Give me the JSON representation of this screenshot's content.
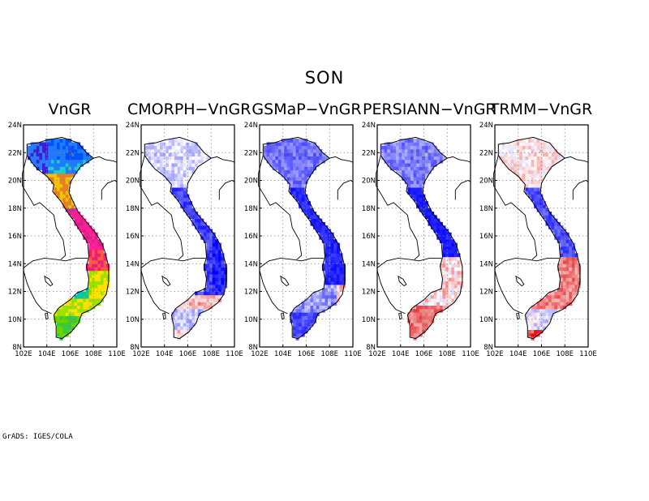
{
  "title": "SON",
  "credit": "GrADS: IGES/COLA",
  "x_ticks": [
    "102E",
    "104E",
    "106E",
    "108E",
    "110E"
  ],
  "y_ticks": [
    "8N",
    "10N",
    "12N",
    "14N",
    "16N",
    "18N",
    "20N",
    "22N",
    "24N"
  ],
  "panels": [
    {
      "title": "VnGR",
      "scheme": "rainbow"
    },
    {
      "title": "CMORPH−VnGR",
      "scheme": "cmorph"
    },
    {
      "title": "GSMaP−VnGR",
      "scheme": "gsmap"
    },
    {
      "title": "PERSIANN−VnGR",
      "scheme": "persiann"
    },
    {
      "title": "TRMM−VnGR",
      "scheme": "trmm"
    }
  ],
  "colors": {
    "negative": "#0000ff",
    "positive": "#e00000",
    "neutral": "#ffffff"
  }
}
